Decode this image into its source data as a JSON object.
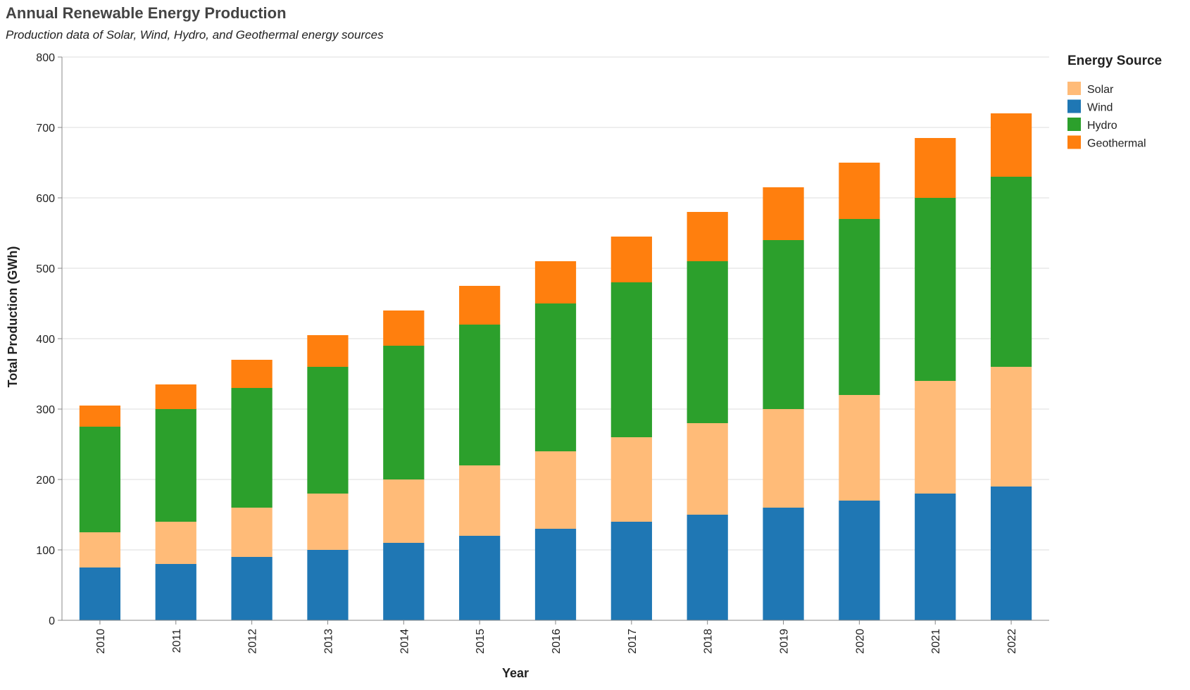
{
  "chart_data": {
    "type": "bar",
    "stacked": true,
    "title": "Annual Renewable Energy Production",
    "subtitle": "Production data of Solar, Wind, Hydro, and Geothermal energy sources",
    "xlabel": "Year",
    "ylabel": "Total Production (GWh)",
    "ylim": [
      0,
      800
    ],
    "yticks": [
      0,
      100,
      200,
      300,
      400,
      500,
      600,
      700,
      800
    ],
    "grid": true,
    "legend_title": "Energy Source",
    "legend_position": "right",
    "categories": [
      "2010",
      "2011",
      "2012",
      "2013",
      "2014",
      "2015",
      "2016",
      "2017",
      "2018",
      "2019",
      "2020",
      "2021",
      "2022"
    ],
    "series": [
      {
        "name": "Wind",
        "color": "#1f77b4",
        "values": [
          75,
          80,
          90,
          100,
          110,
          120,
          130,
          140,
          150,
          160,
          170,
          180,
          190
        ]
      },
      {
        "name": "Solar",
        "color": "#ffbb78",
        "values": [
          50,
          60,
          70,
          80,
          90,
          100,
          110,
          120,
          130,
          140,
          150,
          160,
          170
        ]
      },
      {
        "name": "Hydro",
        "color": "#2ca02c",
        "values": [
          150,
          160,
          170,
          180,
          190,
          200,
          210,
          220,
          230,
          240,
          250,
          260,
          270
        ]
      },
      {
        "name": "Geothermal",
        "color": "#ff7f0e",
        "values": [
          30,
          35,
          40,
          45,
          50,
          55,
          60,
          65,
          70,
          75,
          80,
          85,
          90
        ]
      }
    ],
    "legend_order": [
      "Solar",
      "Wind",
      "Hydro",
      "Geothermal"
    ]
  }
}
